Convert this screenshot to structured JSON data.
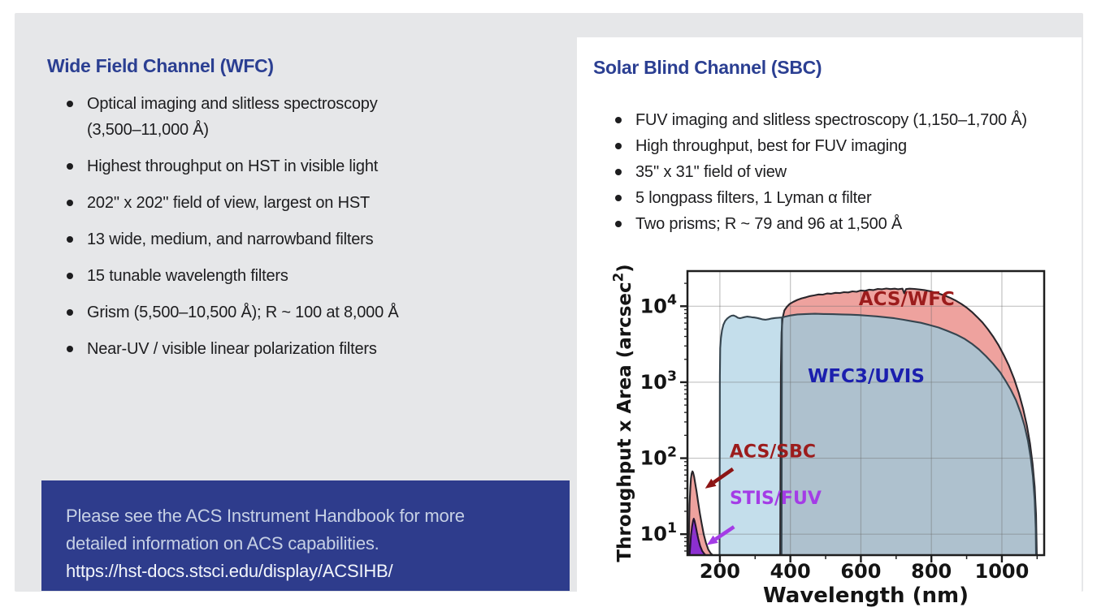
{
  "colors": {
    "title_blue": "#2b3f92",
    "body_text": "#1d1d1f",
    "panel_gray": "#e6e7e9",
    "card_white": "#ffffff",
    "note_bg": "#2e3c8c",
    "note_text": "#c7d1e5",
    "note_url": "#f2f5fa"
  },
  "left_panel": {
    "title": "Wide Field Channel (WFC)",
    "bullets": [
      "Optical imaging and slitless spectroscopy (3,500–11,000 Å)",
      "Highest throughput on HST in visible light",
      "202'' x 202'' field of view, largest on HST",
      "13 wide, medium, and narrowband filters",
      "15 tunable wavelength filters",
      "Grism (5,500–10,500 Å); R ~ 100 at 8,000 Å",
      "Near-UV / visible linear polarization filters"
    ],
    "note": {
      "lines": [
        "Please see the ACS Instrument Handbook for more",
        "detailed information on ACS capabilities.",
        "https://hst-docs.stsci.edu/display/ACSIHB/"
      ]
    }
  },
  "right_panel": {
    "title": "Solar Blind Channel (SBC)",
    "bullets": [
      "FUV imaging and slitless spectroscopy (1,150–1,700 Å)",
      "High throughput, best for FUV imaging",
      "35'' x 31'' field of view",
      "5 longpass filters, 1 Lyman α filter",
      "Two prisms; R ~ 79 and 96 at 1,500 Å"
    ]
  },
  "chart_data": {
    "type": "area",
    "title": "",
    "xlabel": "Wavelength (nm)",
    "ylabel_segments": [
      {
        "t": "Throughput x Area (arcsec"
      },
      {
        "t": "2",
        "sup": true
      },
      {
        "t": ")"
      }
    ],
    "xlim": [
      108,
      1120
    ],
    "ylim_log": [
      5.3,
      29000
    ],
    "x_ticks": [
      200,
      400,
      600,
      800,
      1000
    ],
    "x_minor_ticks": [
      300,
      500,
      700,
      900,
      1100
    ],
    "y_ticks": [
      {
        "val": 10,
        "segments": [
          {
            "t": "10"
          },
          {
            "t": "1",
            "sup": true
          }
        ]
      },
      {
        "val": 100,
        "segments": [
          {
            "t": "10"
          },
          {
            "t": "2",
            "sup": true
          }
        ]
      },
      {
        "val": 1000,
        "segments": [
          {
            "t": "10"
          },
          {
            "t": "3",
            "sup": true
          }
        ]
      },
      {
        "val": 10000,
        "segments": [
          {
            "t": "10"
          },
          {
            "t": "4",
            "sup": true
          }
        ]
      }
    ],
    "grid": true,
    "text_color": "#141414",
    "grid_color": "#6e6e6e",
    "series": [
      {
        "name": "ACS/WFC",
        "fill": "#eea29e",
        "stroke": "#29252a",
        "points": [
          [
            371,
            5.3
          ],
          [
            373,
            1500
          ],
          [
            375,
            4500
          ],
          [
            378,
            7000
          ],
          [
            383,
            8800
          ],
          [
            390,
            9800
          ],
          [
            398,
            10700
          ],
          [
            408,
            11400
          ],
          [
            420,
            12100
          ],
          [
            432,
            12700
          ],
          [
            444,
            13100
          ],
          [
            456,
            13600
          ],
          [
            468,
            13900
          ],
          [
            480,
            14300
          ],
          [
            492,
            14200
          ],
          [
            504,
            14700
          ],
          [
            516,
            14600
          ],
          [
            528,
            15000
          ],
          [
            540,
            14900
          ],
          [
            552,
            15300
          ],
          [
            564,
            15200
          ],
          [
            576,
            15700
          ],
          [
            588,
            15500
          ],
          [
            600,
            16100
          ],
          [
            612,
            15900
          ],
          [
            624,
            16500
          ],
          [
            636,
            16300
          ],
          [
            648,
            16900
          ],
          [
            660,
            16700
          ],
          [
            672,
            17100
          ],
          [
            684,
            16800
          ],
          [
            696,
            17000
          ],
          [
            705,
            16700
          ],
          [
            712,
            16900
          ],
          [
            718,
            17000
          ],
          [
            723,
            14800
          ],
          [
            728,
            16800
          ],
          [
            738,
            17000
          ],
          [
            752,
            16900
          ],
          [
            766,
            16600
          ],
          [
            780,
            16300
          ],
          [
            795,
            15800
          ],
          [
            810,
            15200
          ],
          [
            825,
            14500
          ],
          [
            840,
            13700
          ],
          [
            855,
            12800
          ],
          [
            870,
            11800
          ],
          [
            885,
            10700
          ],
          [
            900,
            9600
          ],
          [
            915,
            8400
          ],
          [
            930,
            7200
          ],
          [
            945,
            6100
          ],
          [
            960,
            5000
          ],
          [
            975,
            4000
          ],
          [
            990,
            3100
          ],
          [
            1005,
            2300
          ],
          [
            1020,
            1650
          ],
          [
            1035,
            1100
          ],
          [
            1048,
            720
          ],
          [
            1060,
            450
          ],
          [
            1071,
            270
          ],
          [
            1080,
            155
          ],
          [
            1087,
            85
          ],
          [
            1093,
            42
          ],
          [
            1097,
            18
          ],
          [
            1099,
            5.3
          ]
        ]
      },
      {
        "name": "WFC3/UVIS (UV segment)",
        "fill": "#c4deeb",
        "stroke": "#36454f",
        "points": [
          [
            199,
            5.3
          ],
          [
            200,
            1200
          ],
          [
            201,
            2800
          ],
          [
            203,
            3800
          ],
          [
            206,
            4800
          ],
          [
            210,
            5700
          ],
          [
            215,
            6400
          ],
          [
            221,
            6900
          ],
          [
            227,
            7250
          ],
          [
            233,
            7500
          ],
          [
            239,
            7550
          ],
          [
            245,
            7350
          ],
          [
            251,
            7050
          ],
          [
            257,
            6950
          ],
          [
            263,
            7050
          ],
          [
            270,
            7200
          ],
          [
            277,
            7300
          ],
          [
            284,
            7250
          ],
          [
            291,
            7150
          ],
          [
            298,
            7100
          ],
          [
            306,
            7000
          ],
          [
            314,
            6850
          ],
          [
            322,
            6700
          ],
          [
            330,
            6650
          ],
          [
            338,
            6750
          ],
          [
            347,
            6900
          ],
          [
            357,
            7000
          ],
          [
            366,
            7050
          ],
          [
            375,
            7100
          ]
        ]
      },
      {
        "name": "WFC3/UVIS (optical segment)",
        "fill": "#aec1ce",
        "stroke": "#36454f",
        "points": [
          [
            375,
            5.3
          ],
          [
            376,
            7100
          ],
          [
            385,
            7300
          ],
          [
            400,
            7550
          ],
          [
            420,
            7800
          ],
          [
            445,
            7900
          ],
          [
            470,
            7950
          ],
          [
            495,
            7900
          ],
          [
            520,
            7850
          ],
          [
            545,
            7800
          ],
          [
            570,
            7750
          ],
          [
            595,
            7650
          ],
          [
            620,
            7500
          ],
          [
            645,
            7350
          ],
          [
            670,
            7150
          ],
          [
            695,
            6950
          ],
          [
            720,
            6650
          ],
          [
            745,
            6350
          ],
          [
            770,
            6050
          ],
          [
            795,
            5650
          ],
          [
            820,
            5250
          ],
          [
            845,
            4750
          ],
          [
            870,
            4250
          ],
          [
            895,
            3700
          ],
          [
            915,
            3200
          ],
          [
            935,
            2700
          ],
          [
            955,
            2200
          ],
          [
            975,
            1750
          ],
          [
            995,
            1350
          ],
          [
            1010,
            1050
          ],
          [
            1025,
            800
          ],
          [
            1040,
            580
          ],
          [
            1053,
            400
          ],
          [
            1064,
            270
          ],
          [
            1074,
            170
          ],
          [
            1082,
            100
          ],
          [
            1088,
            58
          ],
          [
            1093,
            28
          ],
          [
            1096,
            12
          ],
          [
            1097,
            5.3
          ]
        ]
      },
      {
        "name": "ACS/SBC",
        "fill": "#eea29e",
        "stroke": "#29252a",
        "points": [
          [
            111,
            5.3
          ],
          [
            112.5,
            12
          ],
          [
            114,
            25
          ],
          [
            116,
            40
          ],
          [
            118,
            54
          ],
          [
            120,
            63
          ],
          [
            122,
            67
          ],
          [
            124,
            65
          ],
          [
            127,
            57
          ],
          [
            130,
            47
          ],
          [
            134,
            36
          ],
          [
            138,
            27
          ],
          [
            143,
            19
          ],
          [
            148,
            14
          ],
          [
            154,
            10
          ],
          [
            160,
            7.8
          ],
          [
            167,
            6.3
          ],
          [
            174,
            5.6
          ],
          [
            180,
            5.3
          ]
        ]
      },
      {
        "name": "STIS/FUV",
        "fill": "#8c2fd0",
        "stroke": "#241331",
        "points": [
          [
            114,
            5.3
          ],
          [
            116,
            7
          ],
          [
            118,
            9.5
          ],
          [
            121,
            12.5
          ],
          [
            124,
            15
          ],
          [
            126,
            16
          ],
          [
            128,
            15
          ],
          [
            131,
            13
          ],
          [
            135,
            10.5
          ],
          [
            139,
            8.6
          ],
          [
            144,
            7
          ],
          [
            150,
            6
          ],
          [
            156,
            5.5
          ],
          [
            160,
            5.3
          ]
        ]
      }
    ],
    "annotations": [
      {
        "text": "ACS/WFC",
        "nm": 730,
        "val": 10300,
        "color": "#9c1c1c",
        "size": 23
      },
      {
        "text": "WFC3/UVIS",
        "nm": 615,
        "val": 1000,
        "color": "#1b1fae",
        "size": 23
      },
      {
        "text": "ACS/SBC",
        "nm": 350,
        "val": 103,
        "color": "#9c1c1c",
        "size": 22
      },
      {
        "text": "STIS/FUV",
        "nm": 358,
        "val": 25,
        "color": "#a43ce6",
        "size": 22
      }
    ],
    "arrows": [
      {
        "from": [
          237,
          72
        ],
        "to": [
          158,
          40
        ],
        "color": "#8c1414"
      },
      {
        "from": [
          240,
          12.5
        ],
        "to": [
          163,
          7.2
        ],
        "color": "#a43ce6"
      }
    ]
  }
}
